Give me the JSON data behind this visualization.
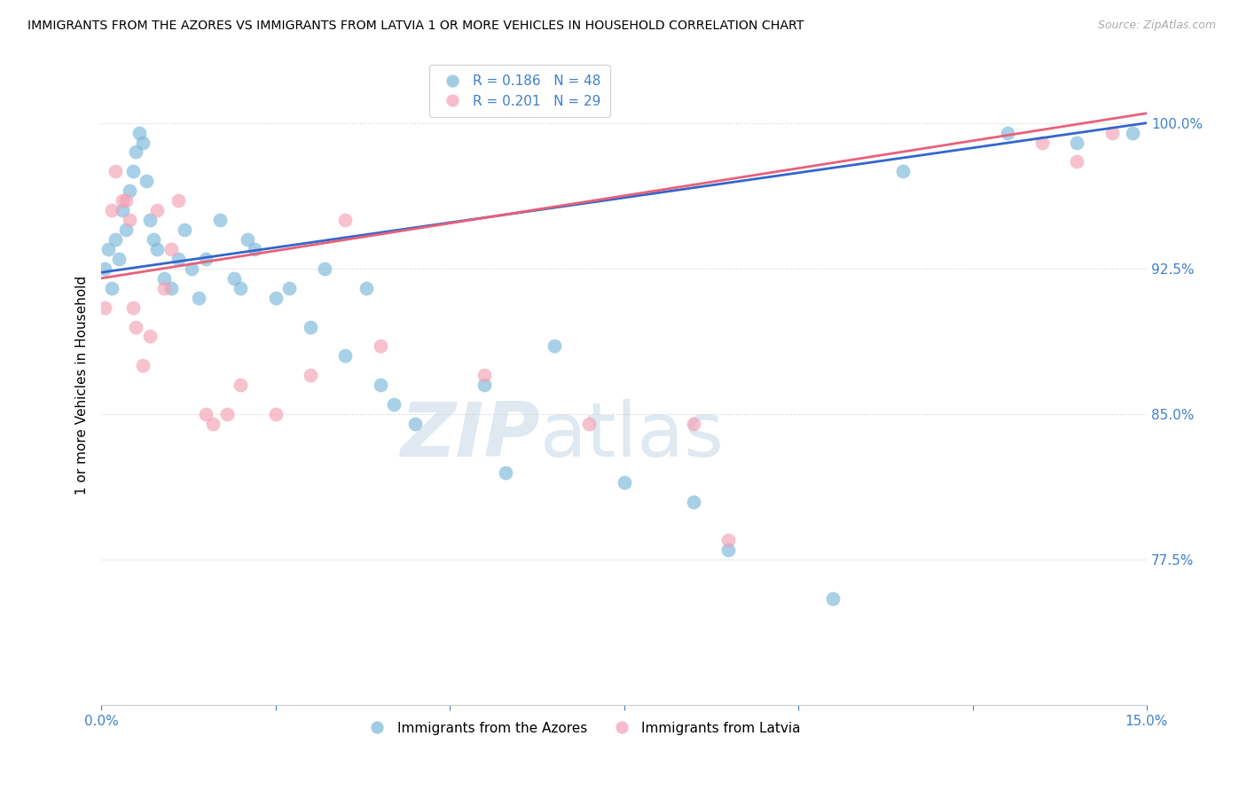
{
  "title": "IMMIGRANTS FROM THE AZORES VS IMMIGRANTS FROM LATVIA 1 OR MORE VEHICLES IN HOUSEHOLD CORRELATION CHART",
  "source": "Source: ZipAtlas.com",
  "ylabel": "1 or more Vehicles in Household",
  "xlim": [
    0.0,
    15.0
  ],
  "ylim": [
    70.0,
    103.0
  ],
  "yticks": [
    77.5,
    85.0,
    92.5,
    100.0
  ],
  "xticks": [
    0.0,
    2.5,
    5.0,
    7.5,
    10.0,
    12.5,
    15.0
  ],
  "ytick_labels": [
    "77.5%",
    "85.0%",
    "92.5%",
    "100.0%"
  ],
  "azores_color": "#7ab8d9",
  "latvia_color": "#f4a0b5",
  "azores_line_color": "#3366cc",
  "latvia_line_color": "#e8607a",
  "azores_R": 0.186,
  "azores_N": 48,
  "latvia_R": 0.201,
  "latvia_N": 29,
  "background_color": "#ffffff",
  "grid_color": "#cccccc",
  "axis_color": "#4080cc",
  "watermark_zip": "ZIP",
  "watermark_atlas": "atlas",
  "azores_x": [
    0.05,
    0.1,
    0.15,
    0.2,
    0.25,
    0.3,
    0.35,
    0.4,
    0.45,
    0.5,
    0.55,
    0.6,
    0.65,
    0.7,
    0.75,
    0.8,
    0.9,
    1.0,
    1.1,
    1.2,
    1.3,
    1.4,
    1.5,
    1.7,
    1.9,
    2.0,
    2.1,
    2.2,
    2.5,
    2.7,
    3.0,
    3.2,
    3.5,
    3.8,
    4.0,
    4.2,
    4.5,
    5.5,
    5.8,
    6.5,
    7.5,
    8.5,
    9.0,
    10.5,
    11.5,
    13.0,
    14.0,
    14.8
  ],
  "azores_y": [
    92.5,
    93.5,
    91.5,
    94.0,
    93.0,
    95.5,
    94.5,
    96.5,
    97.5,
    98.5,
    99.5,
    99.0,
    97.0,
    95.0,
    94.0,
    93.5,
    92.0,
    91.5,
    93.0,
    94.5,
    92.5,
    91.0,
    93.0,
    95.0,
    92.0,
    91.5,
    94.0,
    93.5,
    91.0,
    91.5,
    89.5,
    92.5,
    88.0,
    91.5,
    86.5,
    85.5,
    84.5,
    86.5,
    82.0,
    88.5,
    81.5,
    80.5,
    78.0,
    75.5,
    97.5,
    99.5,
    99.0,
    99.5
  ],
  "latvia_x": [
    0.05,
    0.15,
    0.2,
    0.3,
    0.35,
    0.4,
    0.45,
    0.5,
    0.6,
    0.7,
    0.8,
    0.9,
    1.0,
    1.1,
    1.5,
    1.6,
    1.8,
    2.0,
    2.5,
    3.0,
    3.5,
    4.0,
    5.5,
    7.0,
    8.5,
    9.0,
    13.5,
    14.0,
    14.5
  ],
  "latvia_y": [
    90.5,
    95.5,
    97.5,
    96.0,
    96.0,
    95.0,
    90.5,
    89.5,
    87.5,
    89.0,
    95.5,
    91.5,
    93.5,
    96.0,
    85.0,
    84.5,
    85.0,
    86.5,
    85.0,
    87.0,
    95.0,
    88.5,
    87.0,
    84.5,
    84.5,
    78.5,
    99.0,
    98.0,
    99.5
  ]
}
